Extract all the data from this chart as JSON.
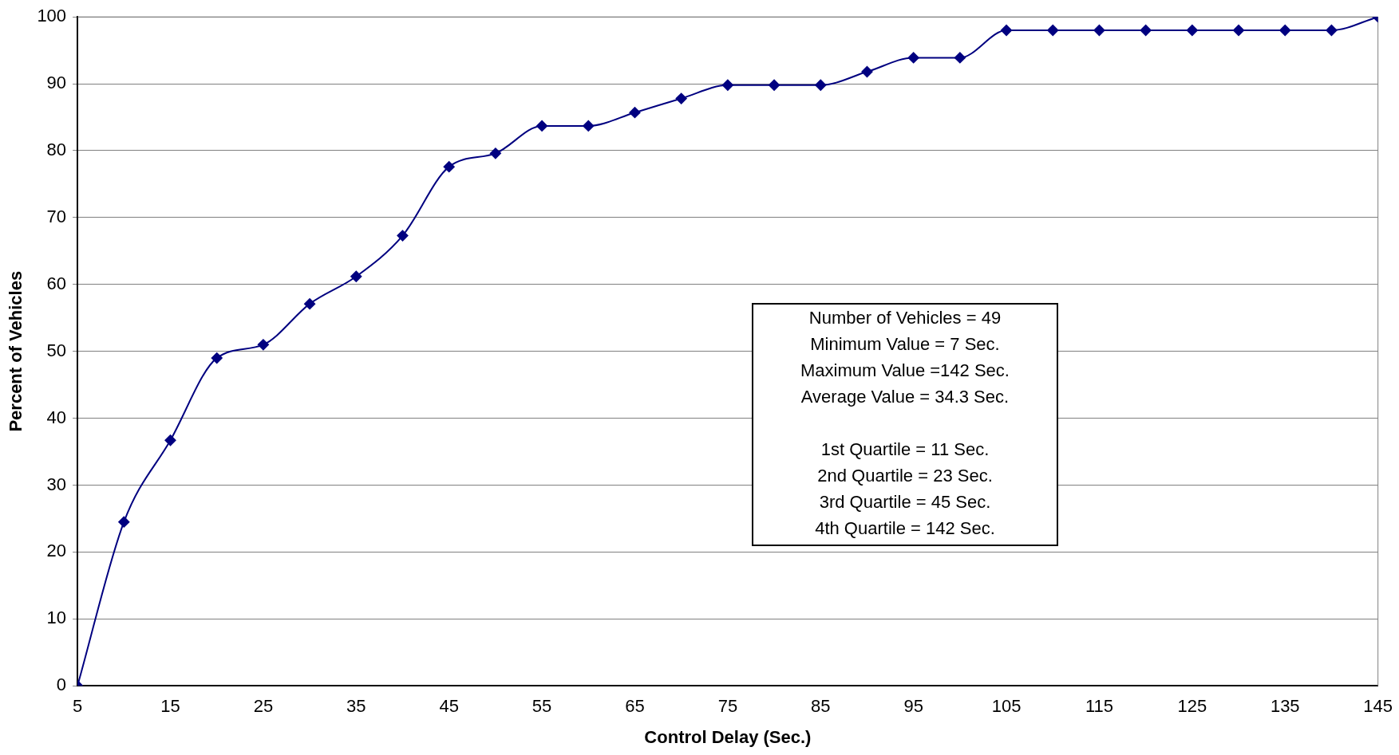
{
  "chart_data": {
    "type": "line",
    "xlabel": "Control Delay (Sec.)",
    "ylabel": "Percent of Vehicles",
    "x": [
      5,
      10,
      15,
      20,
      25,
      30,
      35,
      40,
      45,
      50,
      55,
      60,
      65,
      70,
      75,
      80,
      85,
      90,
      95,
      100,
      105,
      110,
      115,
      120,
      125,
      130,
      135,
      140,
      145
    ],
    "series": [
      {
        "color": "#000080",
        "values": [
          0,
          24.5,
          36.7,
          49,
          51,
          57.1,
          61.2,
          67.3,
          77.6,
          79.6,
          83.7,
          83.7,
          85.7,
          87.8,
          89.8,
          89.8,
          89.8,
          91.8,
          93.9,
          93.9,
          98,
          98,
          98,
          98,
          98,
          98,
          98,
          98,
          100
        ]
      }
    ],
    "xlim": [
      5,
      145
    ],
    "xticks": [
      5,
      15,
      25,
      35,
      45,
      55,
      65,
      75,
      85,
      95,
      105,
      115,
      125,
      135,
      145
    ],
    "ylim": [
      0,
      100
    ],
    "yticks": [
      0,
      10,
      20,
      30,
      40,
      50,
      60,
      70,
      80,
      90,
      100
    ],
    "grid": "y",
    "legend": false,
    "marker": "diamond",
    "line_style": "solid",
    "annotations": [
      "Number of Vehicles = 49",
      "Minimum Value = 7 Sec.",
      "Maximum Value =142 Sec.",
      "Average Value = 34.3 Sec.",
      "1st Quartile = 11 Sec.",
      "2nd Quartile = 23 Sec.",
      "3rd Quartile = 45 Sec.",
      "4th Quartile = 142 Sec."
    ]
  }
}
